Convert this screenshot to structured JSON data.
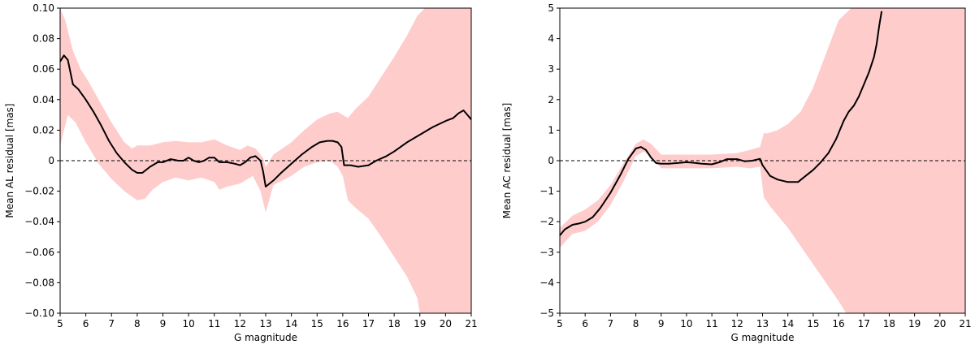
{
  "chart_data": [
    {
      "type": "line",
      "xlabel": "G magnitude",
      "ylabel": "Mean AL residual [mas]",
      "xlim": [
        5,
        21
      ],
      "ylim": [
        -0.1,
        0.1
      ],
      "xticks": [
        5,
        6,
        7,
        8,
        9,
        10,
        11,
        12,
        13,
        14,
        15,
        16,
        17,
        18,
        19,
        20,
        21
      ],
      "xtick_labels": [
        "5",
        "6",
        "7",
        "8",
        "9",
        "10",
        "11",
        "12",
        "13",
        "14",
        "15",
        "16",
        "17",
        "18",
        "19",
        "20",
        "21"
      ],
      "yticks": [
        -0.1,
        -0.08,
        -0.06,
        -0.04,
        -0.02,
        0,
        0.02,
        0.04,
        0.06,
        0.08,
        0.1
      ],
      "ytick_labels": [
        "−0.10",
        "−0.08",
        "−0.06",
        "−0.04",
        "−0.02",
        "0",
        "0.02",
        "0.04",
        "0.06",
        "0.08",
        "0.10"
      ],
      "reference_line_y": 0,
      "series": [
        {
          "name": "mean residual",
          "x": [
            5.0,
            5.15,
            5.3,
            5.5,
            5.7,
            6.0,
            6.3,
            6.6,
            6.9,
            7.2,
            7.5,
            7.8,
            8.0,
            8.2,
            8.5,
            8.8,
            9.0,
            9.3,
            9.6,
            9.8,
            10.0,
            10.2,
            10.4,
            10.6,
            10.8,
            11.0,
            11.2,
            11.5,
            11.8,
            12.0,
            12.2,
            12.4,
            12.6,
            12.8,
            12.9,
            13.0,
            13.3,
            13.6,
            14.0,
            14.4,
            14.8,
            15.1,
            15.4,
            15.6,
            15.8,
            15.95,
            16.05,
            16.3,
            16.6,
            17.0,
            17.3,
            17.7,
            18.0,
            18.5,
            19.0,
            19.5,
            20.0,
            20.3,
            20.5,
            20.7,
            20.85,
            21.0
          ],
          "y": [
            0.065,
            0.069,
            0.066,
            0.05,
            0.047,
            0.04,
            0.032,
            0.023,
            0.013,
            0.005,
            -0.001,
            -0.006,
            -0.008,
            -0.008,
            -0.004,
            -0.001,
            -0.001,
            0.001,
            0.0,
            0.0,
            0.002,
            0.0,
            -0.001,
            0.0,
            0.002,
            0.002,
            -0.001,
            -0.001,
            -0.002,
            -0.003,
            -0.001,
            0.002,
            0.003,
            0.0,
            -0.007,
            -0.017,
            -0.013,
            -0.008,
            -0.002,
            0.004,
            0.009,
            0.012,
            0.013,
            0.013,
            0.012,
            0.009,
            -0.003,
            -0.003,
            -0.004,
            -0.003,
            0.0,
            0.003,
            0.006,
            0.012,
            0.017,
            0.022,
            0.026,
            0.028,
            0.031,
            0.033,
            0.03,
            0.027
          ]
        },
        {
          "name": "uncertainty band upper",
          "x": [
            5.0,
            5.2,
            5.5,
            5.8,
            6.1,
            6.5,
            7.0,
            7.5,
            7.8,
            8.0,
            8.5,
            9.0,
            9.5,
            10.0,
            10.5,
            11.0,
            11.5,
            12.0,
            12.3,
            12.6,
            12.9,
            13.0,
            13.3,
            14.0,
            14.5,
            15.0,
            15.5,
            15.8,
            16.0,
            16.2,
            16.5,
            17.0,
            17.5,
            18.0,
            18.5,
            18.9,
            19.2,
            21.0
          ],
          "y": [
            0.1,
            0.092,
            0.072,
            0.06,
            0.052,
            0.04,
            0.025,
            0.012,
            0.008,
            0.01,
            0.01,
            0.012,
            0.013,
            0.012,
            0.012,
            0.014,
            0.01,
            0.007,
            0.01,
            0.008,
            0.002,
            -0.004,
            0.004,
            0.012,
            0.02,
            0.027,
            0.031,
            0.032,
            0.03,
            0.028,
            0.034,
            0.042,
            0.055,
            0.068,
            0.082,
            0.095,
            0.1,
            0.1
          ]
        },
        {
          "name": "uncertainty band lower",
          "x": [
            5.0,
            5.3,
            5.6,
            6.0,
            6.5,
            7.0,
            7.5,
            8.0,
            8.3,
            8.6,
            9.0,
            9.5,
            10.0,
            10.5,
            11.0,
            11.2,
            11.5,
            12.0,
            12.5,
            12.8,
            13.0,
            13.3,
            14.0,
            14.5,
            15.0,
            15.5,
            15.8,
            16.0,
            16.2,
            16.5,
            17.0,
            17.5,
            18.0,
            18.5,
            18.9,
            19.0,
            19.2,
            21.0
          ],
          "y": [
            0.01,
            0.03,
            0.025,
            0.012,
            -0.002,
            -0.012,
            -0.02,
            -0.026,
            -0.025,
            -0.019,
            -0.014,
            -0.011,
            -0.013,
            -0.011,
            -0.014,
            -0.019,
            -0.017,
            -0.015,
            -0.01,
            -0.02,
            -0.034,
            -0.016,
            -0.01,
            -0.004,
            -0.001,
            0.0,
            -0.004,
            -0.01,
            -0.026,
            -0.031,
            -0.038,
            -0.05,
            -0.063,
            -0.076,
            -0.09,
            -0.1,
            -0.1,
            -0.1
          ]
        }
      ]
    },
    {
      "type": "line",
      "xlabel": "G magnitude",
      "ylabel": "Mean AC residual [mas]",
      "xlim": [
        5,
        21
      ],
      "ylim": [
        -5,
        5
      ],
      "xticks": [
        5,
        6,
        7,
        8,
        9,
        10,
        11,
        12,
        13,
        14,
        15,
        16,
        17,
        18,
        19,
        20,
        21
      ],
      "xtick_labels": [
        "5",
        "6",
        "7",
        "8",
        "9",
        "10",
        "11",
        "12",
        "13",
        "14",
        "15",
        "16",
        "17",
        "18",
        "19",
        "20",
        "21"
      ],
      "yticks": [
        -5,
        -4,
        -3,
        -2,
        -1,
        0,
        1,
        2,
        3,
        4,
        5
      ],
      "ytick_labels": [
        "−5",
        "−4",
        "−3",
        "−2",
        "−1",
        "0",
        "1",
        "2",
        "3",
        "4",
        "5"
      ],
      "reference_line_y": 0,
      "series": [
        {
          "name": "mean residual",
          "x": [
            5.0,
            5.2,
            5.5,
            5.8,
            6.0,
            6.3,
            6.6,
            7.0,
            7.4,
            7.7,
            8.0,
            8.2,
            8.4,
            8.6,
            8.8,
            9.0,
            9.3,
            9.6,
            10.0,
            10.3,
            10.6,
            11.0,
            11.3,
            11.6,
            12.0,
            12.3,
            12.6,
            12.9,
            13.0,
            13.3,
            13.6,
            14.0,
            14.4,
            14.7,
            15.0,
            15.3,
            15.6,
            15.9,
            16.2,
            16.4,
            16.6,
            16.8,
            17.0,
            17.2,
            17.4,
            17.5,
            17.6,
            17.7
          ],
          "y": [
            -2.45,
            -2.25,
            -2.1,
            -2.05,
            -2.0,
            -1.85,
            -1.55,
            -1.05,
            -0.45,
            0.05,
            0.4,
            0.45,
            0.35,
            0.1,
            -0.08,
            -0.1,
            -0.1,
            -0.08,
            -0.05,
            -0.07,
            -0.1,
            -0.12,
            -0.05,
            0.05,
            0.05,
            -0.02,
            0.0,
            0.06,
            -0.15,
            -0.5,
            -0.62,
            -0.7,
            -0.7,
            -0.5,
            -0.3,
            -0.05,
            0.25,
            0.7,
            1.3,
            1.6,
            1.8,
            2.1,
            2.5,
            2.9,
            3.4,
            3.8,
            4.4,
            4.9
          ]
        },
        {
          "name": "uncertainty band upper",
          "x": [
            5.0,
            5.5,
            6.0,
            6.5,
            7.0,
            7.5,
            8.0,
            8.3,
            8.6,
            9.0,
            9.5,
            10.0,
            11.0,
            12.0,
            12.5,
            12.9,
            13.05,
            13.2,
            13.6,
            14.0,
            14.5,
            15.0,
            15.5,
            16.0,
            16.5,
            17.0,
            17.5,
            21.0
          ],
          "y": [
            -2.2,
            -1.8,
            -1.6,
            -1.3,
            -0.8,
            -0.1,
            0.55,
            0.7,
            0.55,
            0.2,
            0.2,
            0.2,
            0.2,
            0.25,
            0.35,
            0.45,
            0.9,
            0.9,
            1.0,
            1.2,
            1.6,
            2.4,
            3.5,
            4.6,
            5.0,
            5.0,
            5.0,
            5.0
          ]
        },
        {
          "name": "uncertainty band lower",
          "x": [
            5.0,
            5.5,
            6.0,
            6.5,
            7.0,
            7.5,
            8.0,
            8.3,
            8.6,
            9.0,
            9.5,
            10.0,
            11.0,
            12.0,
            12.5,
            12.9,
            13.05,
            13.3,
            13.6,
            14.0,
            14.5,
            15.0,
            15.5,
            16.0,
            16.3,
            16.6,
            21.0
          ],
          "y": [
            -2.85,
            -2.4,
            -2.3,
            -2.0,
            -1.45,
            -0.7,
            0.15,
            0.3,
            0.15,
            -0.25,
            -0.25,
            -0.25,
            -0.25,
            -0.2,
            -0.25,
            -0.2,
            -1.2,
            -1.5,
            -1.8,
            -2.2,
            -2.8,
            -3.4,
            -4.0,
            -4.6,
            -5.0,
            -5.0,
            -5.0
          ]
        }
      ]
    }
  ]
}
